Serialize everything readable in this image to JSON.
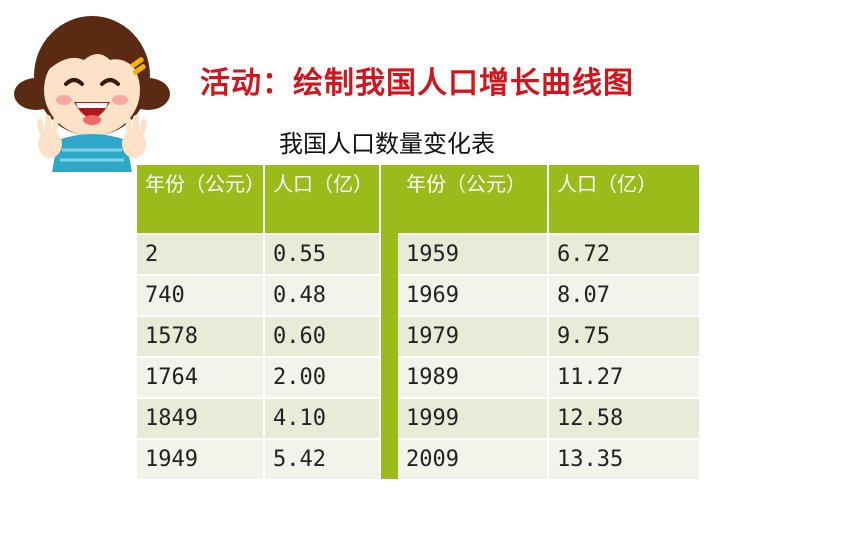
{
  "title": "活动：绘制我国人口增长曲线图",
  "subtitle": "我国人口数量变化表",
  "table": {
    "headers": [
      "年份（公元）",
      "人口（亿）"
    ],
    "left_rows": [
      [
        "2",
        "0.55"
      ],
      [
        "740",
        "0.48"
      ],
      [
        "1578",
        "0.60"
      ],
      [
        "1764",
        "2.00"
      ],
      [
        "1849",
        "4.10"
      ],
      [
        "1949",
        "5.42"
      ]
    ],
    "right_rows": [
      [
        "1959",
        "6.72"
      ],
      [
        "1969",
        "8.07"
      ],
      [
        "1979",
        "9.75"
      ],
      [
        "1989",
        "11.27"
      ],
      [
        "1999",
        "12.58"
      ],
      [
        "2009",
        "13.35"
      ]
    ]
  },
  "colors": {
    "title": "#d6131a",
    "header_bg": "#9bbb1b",
    "row_odd": "#e6ecd8",
    "row_even": "#f1f4ea"
  },
  "icons": {
    "mascot": "cartoon-girl-icon"
  }
}
